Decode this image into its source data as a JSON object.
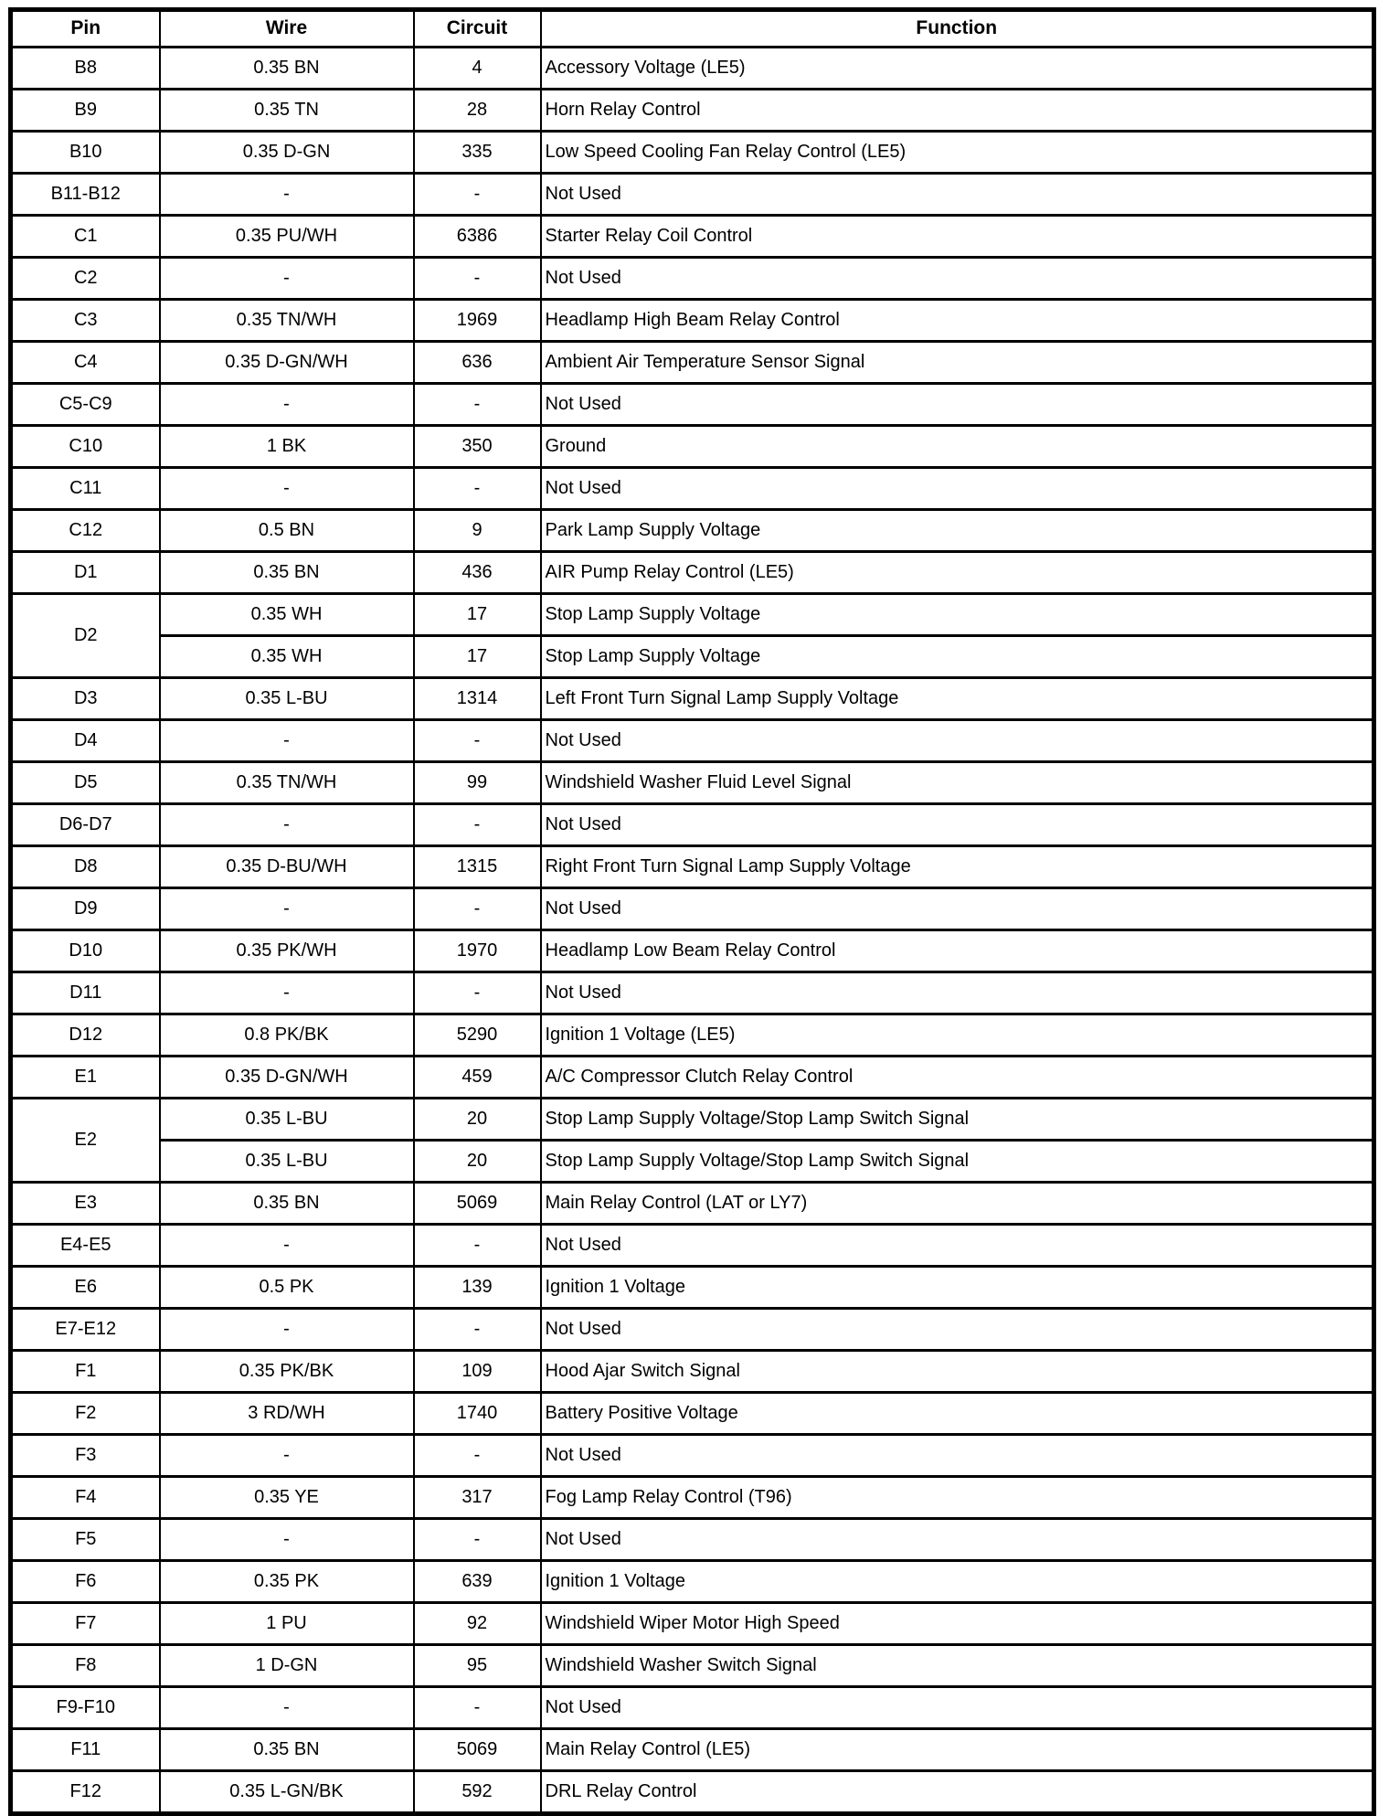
{
  "colors": {
    "background": "#ffffff",
    "border": "#000000",
    "text": "#000000"
  },
  "table": {
    "headers": [
      "Pin",
      "Wire",
      "Circuit",
      "Function"
    ],
    "rows": [
      {
        "pin": "B8",
        "wires": [
          {
            "wire": "0.35 BN",
            "circuit": "4",
            "function": "Accessory Voltage (LE5)"
          }
        ]
      },
      {
        "pin": "B9",
        "wires": [
          {
            "wire": "0.35 TN",
            "circuit": "28",
            "function": "Horn Relay Control"
          }
        ]
      },
      {
        "pin": "B10",
        "wires": [
          {
            "wire": "0.35 D-GN",
            "circuit": "335",
            "function": "Low Speed Cooling Fan Relay Control (LE5)"
          }
        ]
      },
      {
        "pin": "B11-B12",
        "wires": [
          {
            "wire": "-",
            "circuit": "-",
            "function": "Not Used"
          }
        ]
      },
      {
        "pin": "C1",
        "wires": [
          {
            "wire": "0.35 PU/WH",
            "circuit": "6386",
            "function": "Starter Relay Coil Control"
          }
        ]
      },
      {
        "pin": "C2",
        "wires": [
          {
            "wire": "-",
            "circuit": "-",
            "function": "Not Used"
          }
        ]
      },
      {
        "pin": "C3",
        "wires": [
          {
            "wire": "0.35 TN/WH",
            "circuit": "1969",
            "function": "Headlamp High Beam Relay Control"
          }
        ]
      },
      {
        "pin": "C4",
        "wires": [
          {
            "wire": "0.35 D-GN/WH",
            "circuit": "636",
            "function": "Ambient Air Temperature Sensor Signal"
          }
        ]
      },
      {
        "pin": "C5-C9",
        "wires": [
          {
            "wire": "-",
            "circuit": "-",
            "function": "Not Used"
          }
        ]
      },
      {
        "pin": "C10",
        "wires": [
          {
            "wire": "1 BK",
            "circuit": "350",
            "function": "Ground"
          }
        ]
      },
      {
        "pin": "C11",
        "wires": [
          {
            "wire": "-",
            "circuit": "-",
            "function": "Not Used"
          }
        ]
      },
      {
        "pin": "C12",
        "wires": [
          {
            "wire": "0.5 BN",
            "circuit": "9",
            "function": "Park Lamp Supply Voltage"
          }
        ]
      },
      {
        "pin": "D1",
        "wires": [
          {
            "wire": "0.35 BN",
            "circuit": "436",
            "function": "AIR Pump Relay Control (LE5)"
          }
        ]
      },
      {
        "pin": "D2",
        "wires": [
          {
            "wire": "0.35 WH",
            "circuit": "17",
            "function": "Stop Lamp Supply Voltage"
          },
          {
            "wire": "0.35 WH",
            "circuit": "17",
            "function": "Stop Lamp Supply Voltage"
          }
        ]
      },
      {
        "pin": "D3",
        "wires": [
          {
            "wire": "0.35 L-BU",
            "circuit": "1314",
            "function": "Left Front Turn Signal Lamp Supply Voltage"
          }
        ]
      },
      {
        "pin": "D4",
        "wires": [
          {
            "wire": "-",
            "circuit": "-",
            "function": "Not Used"
          }
        ]
      },
      {
        "pin": "D5",
        "wires": [
          {
            "wire": "0.35 TN/WH",
            "circuit": "99",
            "function": "Windshield Washer Fluid Level Signal"
          }
        ]
      },
      {
        "pin": "D6-D7",
        "wires": [
          {
            "wire": "-",
            "circuit": "-",
            "function": "Not Used"
          }
        ]
      },
      {
        "pin": "D8",
        "wires": [
          {
            "wire": "0.35 D-BU/WH",
            "circuit": "1315",
            "function": "Right Front Turn Signal Lamp Supply Voltage"
          }
        ]
      },
      {
        "pin": "D9",
        "wires": [
          {
            "wire": "-",
            "circuit": "-",
            "function": "Not Used"
          }
        ]
      },
      {
        "pin": "D10",
        "wires": [
          {
            "wire": "0.35 PK/WH",
            "circuit": "1970",
            "function": "Headlamp Low Beam Relay Control"
          }
        ]
      },
      {
        "pin": "D11",
        "wires": [
          {
            "wire": "-",
            "circuit": "-",
            "function": "Not Used"
          }
        ]
      },
      {
        "pin": "D12",
        "wires": [
          {
            "wire": "0.8 PK/BK",
            "circuit": "5290",
            "function": "Ignition 1 Voltage (LE5)"
          }
        ]
      },
      {
        "pin": "E1",
        "wires": [
          {
            "wire": "0.35 D-GN/WH",
            "circuit": "459",
            "function": "A/C Compressor Clutch Relay Control"
          }
        ]
      },
      {
        "pin": "E2",
        "wires": [
          {
            "wire": "0.35 L-BU",
            "circuit": "20",
            "function": "Stop Lamp Supply Voltage/Stop Lamp Switch Signal"
          },
          {
            "wire": "0.35 L-BU",
            "circuit": "20",
            "function": "Stop Lamp Supply Voltage/Stop Lamp Switch Signal"
          }
        ]
      },
      {
        "pin": "E3",
        "wires": [
          {
            "wire": "0.35 BN",
            "circuit": "5069",
            "function": "Main Relay Control (LAT or LY7)"
          }
        ]
      },
      {
        "pin": "E4-E5",
        "wires": [
          {
            "wire": "-",
            "circuit": "-",
            "function": "Not Used"
          }
        ]
      },
      {
        "pin": "E6",
        "wires": [
          {
            "wire": "0.5 PK",
            "circuit": "139",
            "function": "Ignition 1 Voltage"
          }
        ]
      },
      {
        "pin": "E7-E12",
        "wires": [
          {
            "wire": "-",
            "circuit": "-",
            "function": "Not Used"
          }
        ]
      },
      {
        "pin": "F1",
        "wires": [
          {
            "wire": "0.35 PK/BK",
            "circuit": "109",
            "function": "Hood Ajar Switch Signal"
          }
        ]
      },
      {
        "pin": "F2",
        "wires": [
          {
            "wire": "3 RD/WH",
            "circuit": "1740",
            "function": "Battery Positive Voltage"
          }
        ]
      },
      {
        "pin": "F3",
        "wires": [
          {
            "wire": "-",
            "circuit": "-",
            "function": "Not Used"
          }
        ]
      },
      {
        "pin": "F4",
        "wires": [
          {
            "wire": "0.35 YE",
            "circuit": "317",
            "function": "Fog Lamp Relay Control (T96)"
          }
        ]
      },
      {
        "pin": "F5",
        "wires": [
          {
            "wire": "-",
            "circuit": "-",
            "function": "Not Used"
          }
        ]
      },
      {
        "pin": "F6",
        "wires": [
          {
            "wire": "0.35 PK",
            "circuit": "639",
            "function": "Ignition 1 Voltage"
          }
        ]
      },
      {
        "pin": "F7",
        "wires": [
          {
            "wire": "1 PU",
            "circuit": "92",
            "function": "Windshield Wiper Motor High Speed"
          }
        ]
      },
      {
        "pin": "F8",
        "wires": [
          {
            "wire": "1 D-GN",
            "circuit": "95",
            "function": "Windshield Washer Switch Signal"
          }
        ]
      },
      {
        "pin": "F9-F10",
        "wires": [
          {
            "wire": "-",
            "circuit": "-",
            "function": "Not Used"
          }
        ]
      },
      {
        "pin": "F11",
        "wires": [
          {
            "wire": "0.35 BN",
            "circuit": "5069",
            "function": "Main Relay Control (LE5)"
          }
        ]
      },
      {
        "pin": "F12",
        "wires": [
          {
            "wire": "0.35 L-GN/BK",
            "circuit": "592",
            "function": "DRL Relay Control"
          }
        ]
      }
    ]
  }
}
